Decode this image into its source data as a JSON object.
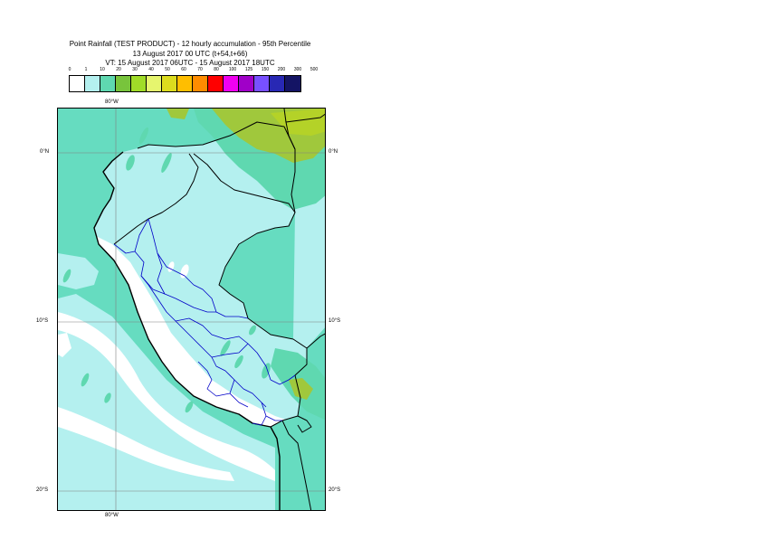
{
  "title": {
    "line1": "Point Rainfall (TEST PRODUCT) - 12 hourly accumulation - 95th Percentile",
    "line2": "13 August 2017 00 UTC (t+54,t+66)",
    "line3": "VT: 15 August 2017 06UTC - 15 August 2017 18UTC"
  },
  "legend": {
    "ticks": [
      "0",
      "1",
      "10",
      "20",
      "30",
      "40",
      "50",
      "60",
      "70",
      "80",
      "100",
      "125",
      "150",
      "200",
      "300",
      "500"
    ],
    "colors": [
      "#ffffff",
      "#b4f0ef",
      "#5fd8b0",
      "#78c43c",
      "#a0dc28",
      "#e6f56e",
      "#dcdc1e",
      "#ffbe00",
      "#ff8c00",
      "#ff0000",
      "#f000f0",
      "#a000c8",
      "#7850ff",
      "#2828b4",
      "#141464"
    ]
  },
  "map": {
    "colors": {
      "sea_base": "#66dcc0",
      "land_base": "#b4f0ef",
      "dry": "#ffffff",
      "moderate": "#5fd8b0",
      "heavy": "#a0c83c",
      "heaviest": "#b4d228",
      "country_border": "#000000",
      "region_border": "#0000c8"
    },
    "labels": {
      "lon_top": "80°W",
      "lon_bottom": "80°W",
      "lat_0_left": "0°N",
      "lat_0_right": "0°N",
      "lat_10_left": "10°S",
      "lat_10_right": "10°S",
      "lat_20_left": "20°S",
      "lat_20_right": "20°S"
    }
  }
}
